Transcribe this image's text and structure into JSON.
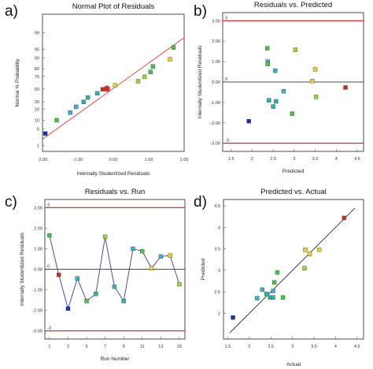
{
  "panel_labels": [
    "a)",
    "b)",
    "c)",
    "d)"
  ],
  "palette": {
    "frame": "#222222",
    "limit_line": "#d92b2b",
    "fit_line": "#e8332a",
    "ref_line": "#111111",
    "point_colors": [
      "#1a2fa8",
      "#c43225",
      "#2ab3a8",
      "#3fb0c8",
      "#4cc24a",
      "#9dd43a",
      "#e6d33a",
      "#f0b02a"
    ]
  },
  "chart_data": [
    {
      "type": "scatter",
      "title": "Normal Plot of Residuals",
      "xlabel": "Internally Studentized Residuals",
      "ylabel": "Normal % Probability",
      "xlim": [
        -2.0,
        2.0
      ],
      "xticks": [
        "-2.00",
        "-1.00",
        "0.00",
        "1.00",
        "2.00"
      ],
      "yticks": [
        "1",
        "5",
        "10",
        "20",
        "30",
        "50",
        "70",
        "80",
        "90",
        "95",
        "99"
      ],
      "ytick_values": [
        1,
        5,
        10,
        20,
        30,
        50,
        70,
        80,
        90,
        95,
        99
      ],
      "y_scale": "normal probability",
      "fit_line": {
        "x": [
          -2.2,
          2.2
        ],
        "y_prob": [
          1.9,
          98.3
        ]
      },
      "points": [
        {
          "x": -1.92,
          "y": 3.3,
          "c": 0
        },
        {
          "x": -1.6,
          "y": 9.9,
          "c": 4
        },
        {
          "x": -1.22,
          "y": 16.5,
          "c": 3
        },
        {
          "x": -1.05,
          "y": 23.1,
          "c": 3
        },
        {
          "x": -0.84,
          "y": 29.7,
          "c": 2
        },
        {
          "x": -0.72,
          "y": 36.3,
          "c": 2
        },
        {
          "x": -0.45,
          "y": 42.9,
          "c": 2
        },
        {
          "x": -0.3,
          "y": 49.5,
          "c": 1
        },
        {
          "x": -0.18,
          "y": 50.5,
          "c": 1
        },
        {
          "x": 0.05,
          "y": 56.1,
          "c": 6
        },
        {
          "x": 0.7,
          "y": 62.7,
          "c": 5
        },
        {
          "x": 0.88,
          "y": 69.3,
          "c": 5
        },
        {
          "x": 1.05,
          "y": 75.9,
          "c": 4
        },
        {
          "x": 1.12,
          "y": 82.5,
          "c": 4
        },
        {
          "x": 1.6,
          "y": 89.1,
          "c": 6
        },
        {
          "x": 1.7,
          "y": 95.7,
          "c": 4
        }
      ]
    },
    {
      "type": "scatter",
      "title": "Residuals vs. Predicted",
      "xlabel": "Predicted",
      "ylabel": "Internally Studentized Residuals",
      "xlim": [
        1.3,
        4.65
      ],
      "ylim": [
        -3.4,
        3.4
      ],
      "xticks": [
        "1.5",
        "2",
        "2.5",
        "3",
        "3.5",
        "4",
        "4.5"
      ],
      "xtick_values": [
        1.5,
        2,
        2.5,
        3,
        3.5,
        4,
        4.5
      ],
      "yticks": [
        "-3.00",
        "-2.00",
        "-1.00",
        "0.00",
        "1.00",
        "2.00",
        "3.00"
      ],
      "ytick_values": [
        -3,
        -2,
        -1,
        0,
        1,
        2,
        3
      ],
      "limits": [
        3,
        -3
      ],
      "limit_labels": [
        "3",
        "-3"
      ],
      "zero_label": "0",
      "points": [
        {
          "x": 1.92,
          "y": -1.92,
          "c": 0
        },
        {
          "x": 2.36,
          "y": 1.65,
          "c": 4
        },
        {
          "x": 2.37,
          "y": 1.0,
          "c": 3
        },
        {
          "x": 2.37,
          "y": 0.88,
          "c": 4
        },
        {
          "x": 2.4,
          "y": -0.9,
          "c": 2
        },
        {
          "x": 2.5,
          "y": -1.2,
          "c": 2
        },
        {
          "x": 2.55,
          "y": 0.55,
          "c": 3
        },
        {
          "x": 2.57,
          "y": -0.95,
          "c": 2
        },
        {
          "x": 2.75,
          "y": -0.45,
          "c": 3
        },
        {
          "x": 2.95,
          "y": -1.55,
          "c": 4
        },
        {
          "x": 3.03,
          "y": 1.58,
          "c": 5
        },
        {
          "x": 3.43,
          "y": 0.05,
          "c": 6
        },
        {
          "x": 3.5,
          "y": 0.62,
          "c": 6
        },
        {
          "x": 3.52,
          "y": -0.73,
          "c": 5
        },
        {
          "x": 4.22,
          "y": -0.27,
          "c": 1
        }
      ]
    },
    {
      "type": "line",
      "title": "Residuals vs. Run",
      "xlabel": "Run Number",
      "ylabel": "Internally Studentized Residuals",
      "xlim": [
        0.5,
        15.6
      ],
      "ylim": [
        -3.4,
        3.4
      ],
      "xticks": [
        "1",
        "3",
        "5",
        "7",
        "9",
        "11",
        "13",
        "15"
      ],
      "xtick_values": [
        1,
        3,
        5,
        7,
        9,
        11,
        13,
        15
      ],
      "yticks": [
        "-3.00",
        "-2.00",
        "-1.00",
        "0.00",
        "1.00",
        "2.00",
        "3.00"
      ],
      "ytick_values": [
        -3,
        -2,
        -1,
        0,
        1,
        2,
        3
      ],
      "limits": [
        3,
        -3
      ],
      "limit_labels": [
        "3",
        "-3"
      ],
      "zero_label": "0",
      "points": [
        {
          "x": 1,
          "y": 1.65,
          "c": 4
        },
        {
          "x": 2,
          "y": -0.27,
          "c": 1
        },
        {
          "x": 3,
          "y": -1.92,
          "c": 0
        },
        {
          "x": 4,
          "y": -0.45,
          "c": 3
        },
        {
          "x": 5,
          "y": -1.55,
          "c": 4
        },
        {
          "x": 6,
          "y": -1.2,
          "c": 2
        },
        {
          "x": 7,
          "y": 1.58,
          "c": 5
        },
        {
          "x": 8,
          "y": -0.85,
          "c": 3
        },
        {
          "x": 9,
          "y": -1.55,
          "c": 2
        },
        {
          "x": 10,
          "y": 1.0,
          "c": 3
        },
        {
          "x": 11,
          "y": 0.88,
          "c": 4
        },
        {
          "x": 12,
          "y": 0.05,
          "c": 6
        },
        {
          "x": 13,
          "y": 0.62,
          "c": 3
        },
        {
          "x": 14,
          "y": 0.67,
          "c": 6
        },
        {
          "x": 15,
          "y": -0.73,
          "c": 5
        }
      ]
    },
    {
      "type": "scatter",
      "title": "Predicted vs. Actual",
      "xlabel": "Actual",
      "ylabel": "Predicted",
      "xlim": [
        1.4,
        4.65
      ],
      "ylim": [
        1.4,
        4.65
      ],
      "xticks": [
        "1.5",
        "2",
        "2.5",
        "3",
        "3.5",
        "4",
        "4.5"
      ],
      "xtick_values": [
        1.5,
        2,
        2.5,
        3,
        3.5,
        4,
        4.5
      ],
      "yticks": [
        "2",
        "2.5",
        "3",
        "3.5",
        "4",
        "4.5"
      ],
      "ytick_values": [
        2,
        2.5,
        3,
        3.5,
        4,
        4.5
      ],
      "reference_line": "y = x",
      "points": [
        {
          "x": 1.62,
          "y": 1.9,
          "c": 0
        },
        {
          "x": 2.18,
          "y": 2.35,
          "c": 3
        },
        {
          "x": 2.3,
          "y": 2.55,
          "c": 3
        },
        {
          "x": 2.4,
          "y": 2.45,
          "c": 2
        },
        {
          "x": 2.48,
          "y": 2.37,
          "c": 2
        },
        {
          "x": 2.55,
          "y": 2.37,
          "c": 2
        },
        {
          "x": 2.55,
          "y": 2.52,
          "c": 3
        },
        {
          "x": 2.58,
          "y": 2.72,
          "c": 4
        },
        {
          "x": 2.65,
          "y": 2.95,
          "c": 4
        },
        {
          "x": 2.78,
          "y": 2.37,
          "c": 4
        },
        {
          "x": 3.28,
          "y": 3.05,
          "c": 5
        },
        {
          "x": 3.3,
          "y": 3.48,
          "c": 6
        },
        {
          "x": 3.4,
          "y": 3.38,
          "c": 6
        },
        {
          "x": 3.62,
          "y": 3.48,
          "c": 6
        },
        {
          "x": 4.2,
          "y": 4.22,
          "c": 1
        }
      ]
    }
  ]
}
